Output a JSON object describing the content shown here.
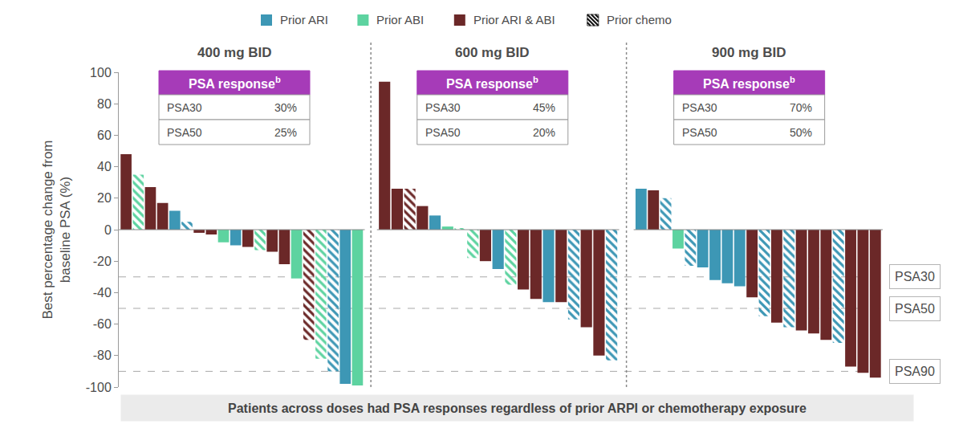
{
  "legend": [
    {
      "name": "Prior ARI",
      "color": "#3d97b5"
    },
    {
      "name": "Prior ABI",
      "color": "#5dd3a0"
    },
    {
      "name": "Prior ARI & ABI",
      "color": "#6b2828"
    },
    {
      "name": "Prior chemo",
      "marker": "hatch"
    }
  ],
  "y_label": [
    "Best percentage change from",
    "baseline PSA (%)"
  ],
  "ylim": [
    -100,
    100
  ],
  "yticks": [
    -100,
    -80,
    -60,
    -40,
    -20,
    0,
    20,
    40,
    60,
    80,
    100
  ],
  "grid": false,
  "tick_labels": "y",
  "thresholds": [
    {
      "label": "PSA30",
      "value": -30
    },
    {
      "label": "PSA50",
      "value": -50
    },
    {
      "label": "PSA90",
      "value": -90
    }
  ],
  "footer": "Patients across doses had PSA responses regardless of prior ARPI or chemotherapy exposure",
  "chart_data": [
    {
      "type": "bar",
      "title": "400 mg BID",
      "categories": [
        null,
        null,
        null,
        null,
        null,
        null,
        null,
        null,
        null,
        null,
        null,
        null,
        null,
        null,
        null,
        null,
        null,
        null,
        null,
        null
      ],
      "values": [
        48,
        35,
        27,
        17,
        12,
        5,
        -2,
        -3,
        -8,
        -10,
        -11,
        -13,
        -14,
        -22,
        -31,
        -70,
        -82,
        -90,
        -98,
        -99
      ],
      "groups": [
        "Prior ARI & ABI",
        "Prior ABI",
        "Prior ARI & ABI",
        "Prior ARI & ABI",
        "Prior ARI",
        "Prior ARI",
        "Prior ARI & ABI",
        "Prior ARI & ABI",
        "Prior ABI",
        "Prior ARI",
        "Prior ARI & ABI",
        "Prior ABI",
        "Prior ARI & ABI",
        "Prior ARI & ABI",
        "Prior ABI",
        "Prior ARI & ABI",
        "Prior ABI",
        "Prior ARI",
        "Prior ARI",
        "Prior ABI"
      ],
      "prior_chemo": [
        false,
        true,
        false,
        false,
        false,
        true,
        false,
        false,
        false,
        false,
        false,
        true,
        false,
        false,
        false,
        true,
        true,
        true,
        false,
        false
      ],
      "psa_response": {
        "title": "PSA response",
        "superscript": "b",
        "rows": [
          [
            "PSA30",
            "30%"
          ],
          [
            "PSA50",
            "25%"
          ]
        ]
      }
    },
    {
      "type": "bar",
      "title": "600 mg BID",
      "categories": [
        null,
        null,
        null,
        null,
        null,
        null,
        null,
        null,
        null,
        null,
        null,
        null,
        null,
        null,
        null,
        null,
        null,
        null,
        null
      ],
      "values": [
        94,
        26,
        26,
        15,
        9,
        2,
        1,
        -18,
        -20,
        -25,
        -35,
        -38,
        -44,
        -46,
        -46,
        -57,
        -62,
        -80,
        -83
      ],
      "groups": [
        "Prior ARI & ABI",
        "Prior ARI & ABI",
        "Prior ARI & ABI",
        "Prior ARI & ABI",
        "Prior ARI",
        "Prior ABI",
        "Prior ABI",
        "Prior ABI",
        "Prior ARI & ABI",
        "Prior ARI",
        "Prior ABI",
        "Prior ARI & ABI",
        "Prior ARI & ABI",
        "Prior ARI",
        "Prior ARI & ABI",
        "Prior ARI",
        "Prior ARI & ABI",
        "Prior ARI & ABI",
        "Prior ARI"
      ],
      "prior_chemo": [
        false,
        false,
        true,
        false,
        false,
        false,
        true,
        true,
        false,
        false,
        true,
        false,
        false,
        false,
        false,
        true,
        false,
        false,
        true
      ],
      "psa_response": {
        "title": "PSA response",
        "superscript": "b",
        "rows": [
          [
            "PSA30",
            "45%"
          ],
          [
            "PSA50",
            "20%"
          ]
        ]
      }
    },
    {
      "type": "bar",
      "title": "900 mg BID",
      "categories": [
        null,
        null,
        null,
        null,
        null,
        null,
        null,
        null,
        null,
        null,
        null,
        null,
        null,
        null,
        null,
        null,
        null,
        null,
        null,
        null
      ],
      "values": [
        26,
        25,
        20,
        -12,
        -23,
        -24,
        -32,
        -34,
        -36,
        -43,
        -55,
        -59,
        -62,
        -64,
        -66,
        -70,
        -72,
        -87,
        -91,
        -94
      ],
      "groups": [
        "Prior ARI",
        "Prior ARI & ABI",
        "Prior ARI",
        "Prior ABI",
        "Prior ARI",
        "Prior ARI",
        "Prior ARI",
        "Prior ARI",
        "Prior ARI",
        "Prior ARI & ABI",
        "Prior ARI",
        "Prior ARI & ABI",
        "Prior ARI",
        "Prior ARI & ABI",
        "Prior ARI & ABI",
        "Prior ARI & ABI",
        "Prior ARI",
        "Prior ARI & ABI",
        "Prior ARI & ABI",
        "Prior ARI & ABI"
      ],
      "prior_chemo": [
        false,
        false,
        true,
        false,
        true,
        false,
        false,
        false,
        false,
        false,
        true,
        false,
        true,
        false,
        false,
        false,
        true,
        false,
        false,
        false
      ],
      "psa_response": {
        "title": "PSA response",
        "superscript": "b",
        "rows": [
          [
            "PSA30",
            "70%"
          ],
          [
            "PSA50",
            "50%"
          ]
        ]
      }
    }
  ]
}
